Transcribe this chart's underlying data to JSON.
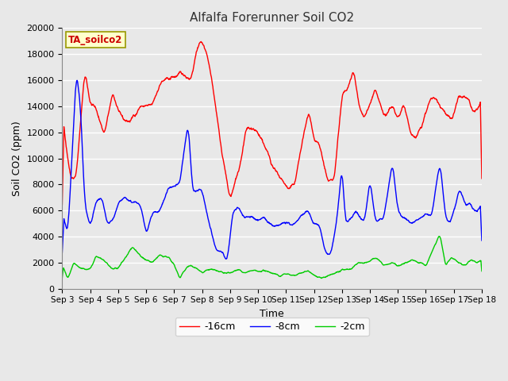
{
  "title": "Alfalfa Forerunner Soil CO2",
  "xlabel": "Time",
  "ylabel": "Soil CO2 (ppm)",
  "annotation": "TA_soilco2",
  "ylim": [
    0,
    20000
  ],
  "yticks": [
    0,
    2000,
    4000,
    6000,
    8000,
    10000,
    12000,
    14000,
    16000,
    18000,
    20000
  ],
  "xtick_labels": [
    "Sep 3",
    "Sep 4",
    "Sep 5",
    "Sep 6",
    "Sep 7",
    "Sep 8",
    "Sep 9",
    "Sep 10",
    "Sep 11",
    "Sep 12",
    "Sep 13",
    "Sep 14",
    "Sep 15",
    "Sep 16",
    "Sep 17",
    "Sep 18"
  ],
  "plot_bg_color": "#e8e8e8",
  "fig_bg_color": "#e8e8e8",
  "grid_color": "#ffffff",
  "line_colors": {
    "16cm": "#ff0000",
    "8cm": "#0000ff",
    "2cm": "#00cc00"
  },
  "legend_labels": [
    "-16cm",
    "-8cm",
    "-2cm"
  ],
  "title_fontsize": 11,
  "axis_label_fontsize": 9,
  "tick_fontsize": 8
}
